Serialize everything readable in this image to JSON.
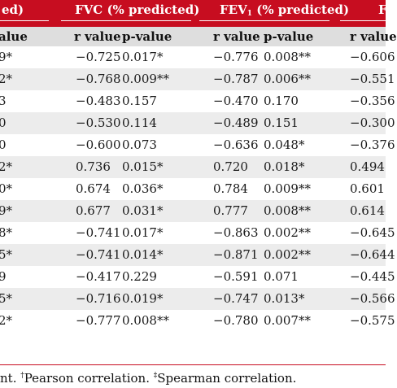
{
  "table": {
    "group_headers": [
      {
        "key": "g0",
        "text": "ed)"
      },
      {
        "key": "g1",
        "text": "FVC (% predicted)"
      },
      {
        "key": "g2",
        "pre": "FEV",
        "sub": "1",
        "post": " (% predicted)"
      },
      {
        "key": "g3",
        "text": "F"
      }
    ],
    "column_headers": [
      "alue",
      "r value",
      "p-value",
      "r value",
      "p-value",
      "r value"
    ],
    "rows": [
      [
        "9*",
        "−0.725",
        "0.017*",
        "−0.776",
        "0.008**",
        "−0.606"
      ],
      [
        "2*",
        "−0.768",
        "0.009**",
        "−0.787",
        "0.006**",
        "−0.551"
      ],
      [
        "3",
        "−0.483",
        "0.157",
        "−0.470",
        "0.170",
        "−0.356"
      ],
      [
        "0",
        "−0.530",
        "0.114",
        "−0.489",
        "0.151",
        "−0.300"
      ],
      [
        "0",
        "−0.600",
        "0.073",
        "−0.636",
        "0.048*",
        "−0.376"
      ],
      [
        "2*",
        "0.736",
        "0.015*",
        "0.720",
        "0.018*",
        "0.494"
      ],
      [
        "0*",
        "0.674",
        "0.036*",
        "0.784",
        "0.009**",
        "0.601"
      ],
      [
        "9*",
        "0.677",
        "0.031*",
        "0.777",
        "0.008**",
        "0.614"
      ],
      [
        "8*",
        "−0.741",
        "0.017*",
        "−0.863",
        "0.002**",
        "−0.645"
      ],
      [
        "5*",
        "−0.741",
        "0.014*",
        "−0.871",
        "0.002**",
        "−0.644"
      ],
      [
        "9",
        "−0.417",
        "0.229",
        "−0.591",
        "0.071",
        "−0.445"
      ],
      [
        "5*",
        "−0.716",
        "0.019*",
        "−0.747",
        "0.013*",
        "−0.566"
      ],
      [
        "2*",
        "−0.777",
        "0.008**",
        "−0.780",
        "0.007**",
        "−0.575"
      ]
    ]
  },
  "footnote": {
    "prefix": "nt. ",
    "mark1": "†",
    "text1": "Pearson correlation. ",
    "mark2": "‡",
    "text2": "Spearman correlation."
  },
  "colors": {
    "header_bg": "#c70d20",
    "subheader_bg": "#dedede",
    "row_shade": "#ececec"
  }
}
